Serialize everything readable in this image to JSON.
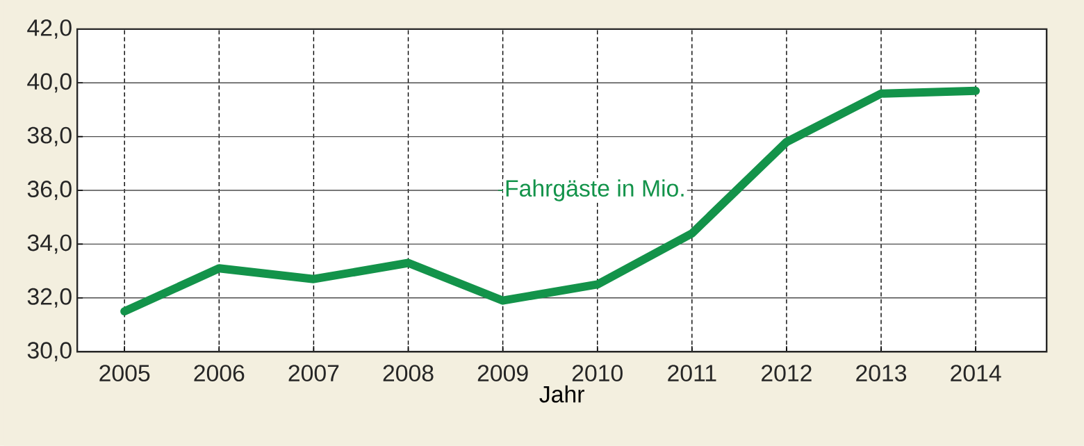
{
  "chart_data": {
    "type": "line",
    "xlabel": "Jahr",
    "categories": [
      "2005",
      "2006",
      "2007",
      "2008",
      "2009",
      "2010",
      "2011",
      "2012",
      "2013",
      "2014"
    ],
    "series": [
      {
        "name": "Fahrgäste in Mio.",
        "color": "#13934a",
        "values": [
          31.5,
          33.1,
          32.7,
          33.3,
          31.9,
          32.5,
          34.4,
          37.8,
          39.6,
          39.7
        ]
      }
    ],
    "ylim": [
      30,
      42
    ],
    "yticks": [
      {
        "value": 30,
        "label": "30,0"
      },
      {
        "value": 32,
        "label": "32,0"
      },
      {
        "value": 34,
        "label": "34,0"
      },
      {
        "value": 36,
        "label": "36,0"
      },
      {
        "value": 38,
        "label": "38,0"
      },
      {
        "value": 40,
        "label": "40,0"
      },
      {
        "value": 42,
        "label": "42,0"
      }
    ],
    "grid": true,
    "marker": "none",
    "line_style": "solid"
  }
}
